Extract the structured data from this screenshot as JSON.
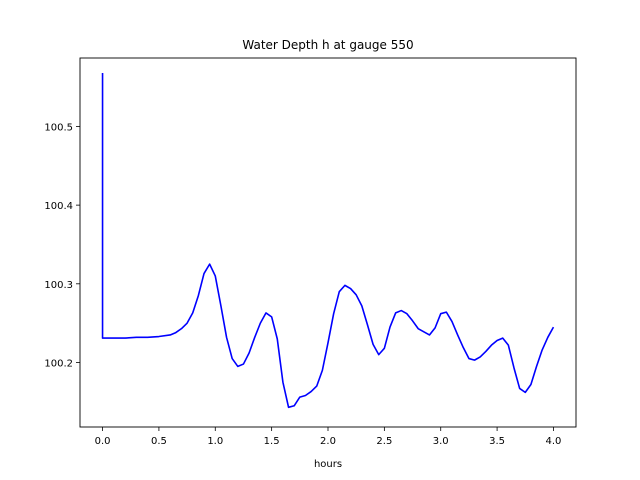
{
  "chart_data": {
    "type": "line",
    "title": "Water Depth h at gauge 550",
    "xlabel": "hours",
    "ylabel": "",
    "xlim": [
      -0.2,
      4.2
    ],
    "ylim": [
      100.118,
      100.587
    ],
    "xticks": [
      0.0,
      0.5,
      1.0,
      1.5,
      2.0,
      2.5,
      3.0,
      3.5,
      4.0
    ],
    "xtick_labels": [
      "0.0",
      "0.5",
      "1.0",
      "1.5",
      "2.0",
      "2.5",
      "3.0",
      "3.5",
      "4.0"
    ],
    "yticks": [
      100.2,
      100.3,
      100.4,
      100.5
    ],
    "ytick_labels": [
      "100.2",
      "100.3",
      "100.4",
      "100.5"
    ],
    "grid": false,
    "series": [
      {
        "color": "#0000ff",
        "x": [
          0.0,
          0.0,
          0.1,
          0.2,
          0.3,
          0.4,
          0.5,
          0.6,
          0.65,
          0.7,
          0.75,
          0.8,
          0.85,
          0.9,
          0.95,
          1.0,
          1.05,
          1.1,
          1.15,
          1.2,
          1.25,
          1.3,
          1.35,
          1.4,
          1.45,
          1.5,
          1.55,
          1.6,
          1.65,
          1.7,
          1.75,
          1.8,
          1.85,
          1.9,
          1.95,
          2.0,
          2.05,
          2.1,
          2.15,
          2.2,
          2.25,
          2.3,
          2.35,
          2.4,
          2.45,
          2.5,
          2.55,
          2.6,
          2.65,
          2.7,
          2.75,
          2.8,
          2.85,
          2.9,
          2.95,
          3.0,
          3.05,
          3.1,
          3.15,
          3.2,
          3.25,
          3.3,
          3.35,
          3.4,
          3.45,
          3.5,
          3.55,
          3.6,
          3.65,
          3.7,
          3.75,
          3.8,
          3.85,
          3.9,
          3.95,
          4.0
        ],
        "y": [
          100.568,
          100.231,
          100.231,
          100.231,
          100.232,
          100.232,
          100.233,
          100.235,
          100.238,
          100.243,
          100.25,
          100.263,
          100.285,
          100.313,
          100.325,
          100.31,
          100.272,
          100.232,
          100.205,
          100.195,
          100.198,
          100.212,
          100.232,
          100.25,
          100.263,
          100.258,
          100.23,
          100.175,
          100.143,
          100.145,
          100.156,
          100.158,
          100.163,
          100.17,
          100.19,
          100.225,
          100.262,
          100.29,
          100.298,
          100.294,
          100.286,
          100.272,
          100.248,
          100.223,
          100.21,
          100.218,
          100.245,
          100.263,
          100.266,
          100.262,
          100.253,
          100.243,
          100.239,
          100.235,
          100.244,
          100.262,
          100.264,
          100.252,
          100.235,
          100.219,
          100.205,
          100.203,
          100.207,
          100.214,
          100.222,
          100.228,
          100.231,
          100.222,
          100.193,
          100.167,
          100.162,
          100.172,
          100.195,
          100.216,
          100.232,
          100.245
        ]
      }
    ]
  }
}
